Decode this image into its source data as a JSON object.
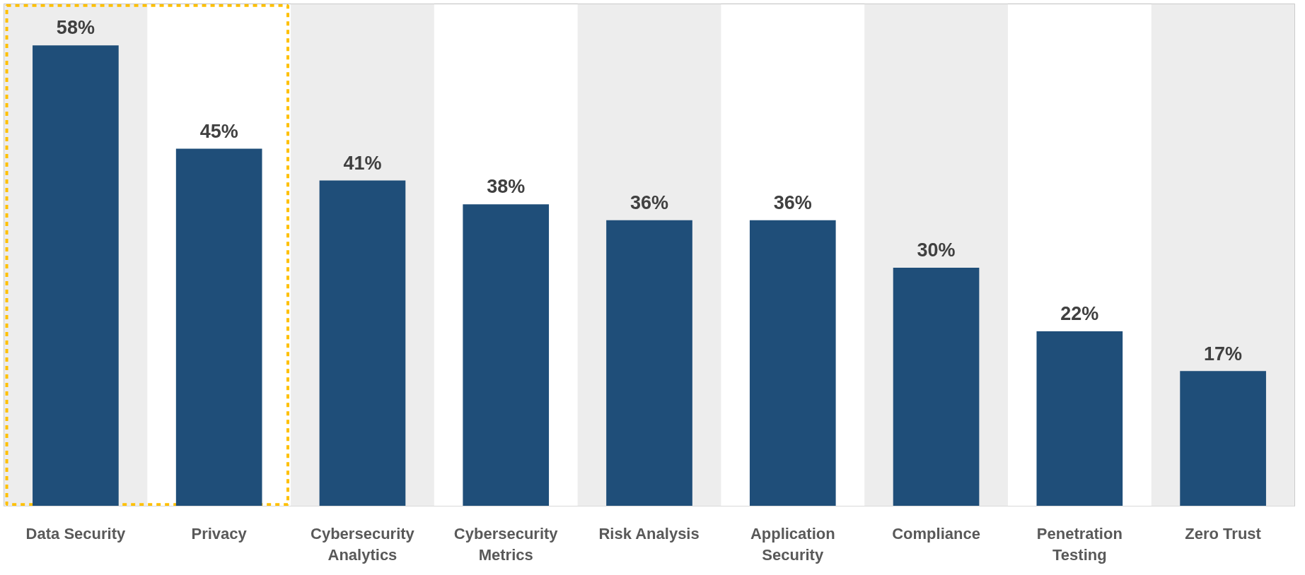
{
  "chart_data": {
    "type": "bar",
    "categories": [
      "Data Security",
      "Privacy",
      "Cybersecurity Analytics",
      "Cybersecurity Metrics",
      "Risk Analysis",
      "Application Security",
      "Compliance",
      "Penetration Testing",
      "Zero Trust"
    ],
    "values": [
      58,
      45,
      41,
      38,
      36,
      36,
      30,
      22,
      17
    ],
    "value_labels": [
      "58%",
      "45%",
      "41%",
      "38%",
      "36%",
      "36%",
      "30%",
      "22%",
      "17%"
    ],
    "color": "#1f4e79",
    "grid": false
  }
}
